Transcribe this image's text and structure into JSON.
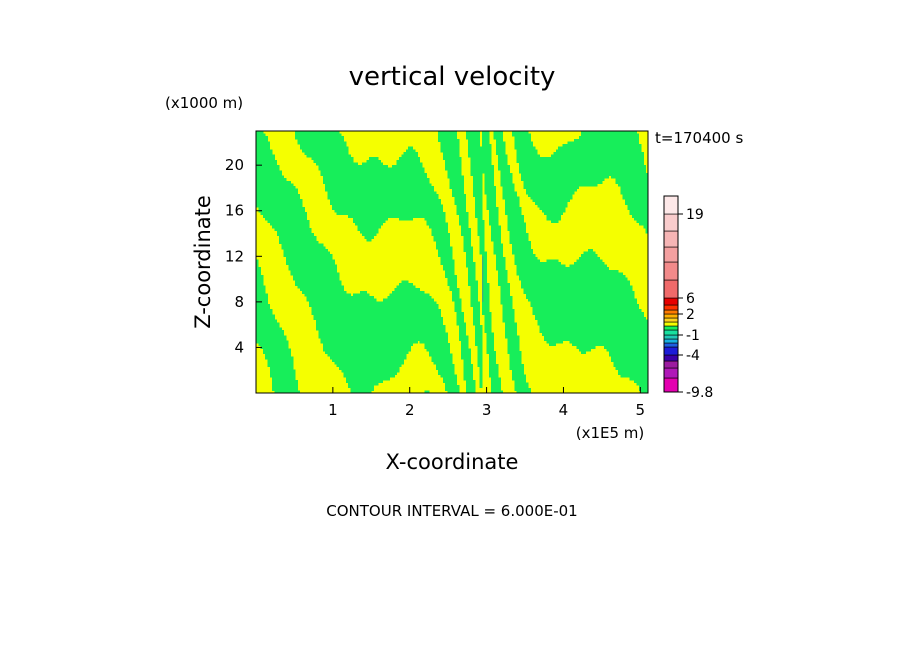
{
  "chart_data": {
    "type": "heatmap",
    "title": "vertical velocity",
    "xlabel": "X-coordinate",
    "ylabel": "Z-coordinate",
    "x_unit": "(x1E5 m)",
    "y_unit": "(x1000 m)",
    "time_label": "t=170400 s",
    "xlim": [
      0,
      5.1
    ],
    "ylim": [
      0,
      23
    ],
    "xticks": [
      "1",
      "2",
      "3",
      "4",
      "5"
    ],
    "yticks": [
      "4",
      "8",
      "12",
      "16",
      "20"
    ],
    "contour_note": "CONTOUR INTERVAL = 6.000E-01",
    "field_colors": {
      "positive": "#f5ff00",
      "negative": "#17ee5a",
      "center_line": "#4aa088"
    },
    "colorbar": {
      "labels": [
        "19",
        "6",
        "2",
        "-1",
        "-4",
        "-9.8"
      ],
      "label_levels": [
        19,
        6,
        2,
        -1,
        -4,
        -9.8
      ],
      "levels": [
        -9.8,
        -7.8,
        -5.8,
        -4.6,
        -4,
        -3.4,
        -2.2,
        -1.6,
        -1,
        -0.4,
        0.2,
        0.8,
        1.4,
        2,
        2.6,
        3.8,
        6,
        8.5,
        11,
        13.5,
        16,
        19,
        22
      ],
      "colors": [
        "#e400b0",
        "#b018b8",
        "#9c1ca0",
        "#3a00a8",
        "#1c1cd8",
        "#1f5fe0",
        "#18b0e0",
        "#20c8b8",
        "#18e0a0",
        "#17ee5a",
        "#f5ff00",
        "#ffd21c",
        "#ffb000",
        "#ff7a00",
        "#ff3000",
        "#e60000",
        "#f06a6a",
        "#f28a8a",
        "#f4a0a0",
        "#f6b5b5",
        "#f9cccc",
        "#fde8e8"
      ]
    }
  }
}
